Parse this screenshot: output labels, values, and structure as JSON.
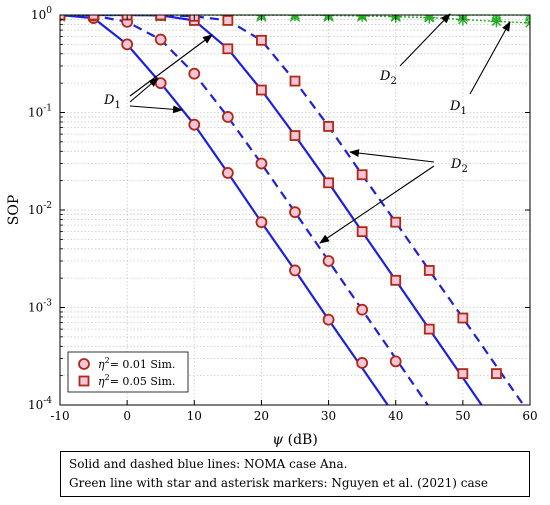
{
  "chart_data": {
    "type": "line",
    "xlabel": "ψ (dB)",
    "ylabel": "SOP",
    "x_ticks": [
      -10,
      0,
      10,
      20,
      30,
      40,
      50,
      60
    ],
    "xlim": [
      -10,
      60
    ],
    "ylim": [
      0.0001,
      1
    ],
    "y_scale": "log",
    "y_tick_exponents": [
      0,
      -1,
      -2,
      -3,
      -4
    ],
    "grid": true,
    "legend": {
      "placement": "bottom-left",
      "entries": [
        {
          "sym": "η",
          "sup": "2",
          "rest": "= 0.01 Sim.",
          "marker": "circle"
        },
        {
          "sym": "η",
          "sup": "2",
          "rest": "= 0.05 Sim.",
          "marker": "square"
        }
      ]
    },
    "annotations": [
      {
        "main": "D",
        "sub": "1"
      },
      {
        "main": "D",
        "sub": "2"
      },
      {
        "main": "D",
        "sub": "2"
      },
      {
        "main": "D",
        "sub": "1"
      }
    ],
    "series": [
      {
        "style": "solid-blue",
        "x": [
          -10,
          -5,
          0,
          5,
          10,
          15,
          20,
          25,
          30,
          35,
          40
        ],
        "y": [
          1,
          0.93,
          0.5,
          0.2,
          0.075,
          0.024,
          0.0075,
          0.0024,
          0.00075,
          0.00024,
          7.6e-05
        ]
      },
      {
        "style": "dashed-blue",
        "x": [
          -10,
          -5,
          0,
          5,
          10,
          15,
          20,
          25,
          30,
          35,
          40,
          45
        ],
        "y": [
          1,
          0.985,
          0.85,
          0.56,
          0.25,
          0.09,
          0.03,
          0.0095,
          0.003,
          0.00095,
          0.0003,
          9.5e-05
        ]
      },
      {
        "style": "solid-blue",
        "x": [
          -10,
          -5,
          0,
          5,
          10,
          15,
          20,
          25,
          30,
          35,
          40,
          45,
          50,
          55
        ],
        "y": [
          1,
          1,
          1,
          0.99,
          0.88,
          0.45,
          0.17,
          0.058,
          0.019,
          0.006,
          0.0019,
          0.0006,
          0.00019,
          6e-05
        ]
      },
      {
        "style": "dashed-blue",
        "x": [
          -10,
          -5,
          0,
          5,
          10,
          15,
          20,
          25,
          30,
          35,
          40,
          45,
          50,
          55,
          60
        ],
        "y": [
          1,
          1,
          1,
          1,
          0.97,
          0.88,
          0.55,
          0.21,
          0.072,
          0.023,
          0.0075,
          0.0024,
          0.00078,
          0.00025,
          8e-05
        ]
      },
      {
        "style": "green-dotted-star",
        "x": [
          -10,
          -5,
          0,
          5,
          10,
          15,
          20,
          25,
          30,
          35,
          40,
          45,
          50,
          55,
          60
        ],
        "y": [
          1,
          1,
          1,
          1,
          1,
          1,
          1,
          1,
          1,
          1,
          1,
          1,
          1,
          1,
          1
        ]
      },
      {
        "style": "green-dotted-asterisk",
        "x": [
          -10,
          -5,
          0,
          5,
          10,
          15,
          20,
          25,
          30,
          35,
          40,
          45,
          50,
          55,
          60
        ],
        "y": [
          1,
          1,
          1,
          1,
          1,
          1,
          1,
          1,
          0.99,
          0.98,
          0.96,
          0.94,
          0.9,
          0.86,
          0.83
        ]
      },
      {
        "style": "sim-circle",
        "x": [
          -10,
          -5,
          0,
          5,
          10,
          15,
          20,
          25,
          30,
          35
        ],
        "y": [
          1,
          0.93,
          0.5,
          0.2,
          0.075,
          0.024,
          0.0075,
          0.0024,
          0.00075,
          0.00027
        ]
      },
      {
        "style": "sim-circle",
        "x": [
          -10,
          -5,
          0,
          5,
          10,
          15,
          20,
          25,
          30,
          35,
          40
        ],
        "y": [
          1,
          0.985,
          0.85,
          0.56,
          0.25,
          0.09,
          0.03,
          0.0095,
          0.003,
          0.00095,
          0.00028
        ]
      },
      {
        "style": "sim-square",
        "x": [
          -10,
          -5,
          0,
          5,
          10,
          15,
          20,
          25,
          30,
          35,
          40,
          45,
          50
        ],
        "y": [
          1,
          1,
          1,
          0.99,
          0.88,
          0.45,
          0.17,
          0.058,
          0.019,
          0.006,
          0.0019,
          0.0006,
          0.00021
        ]
      },
      {
        "style": "sim-square",
        "x": [
          -10,
          -5,
          0,
          5,
          10,
          15,
          20,
          25,
          30,
          35,
          40,
          45,
          50,
          55
        ],
        "y": [
          1,
          1,
          1,
          1,
          0.97,
          0.88,
          0.55,
          0.21,
          0.072,
          0.023,
          0.0075,
          0.0024,
          0.00078,
          0.00021
        ]
      }
    ]
  },
  "note": {
    "line1": "Solid and dashed blue lines: NOMA case Ana.",
    "line2": "Green line with star and asterisk markers: Nguyen et al. (2021) case"
  }
}
